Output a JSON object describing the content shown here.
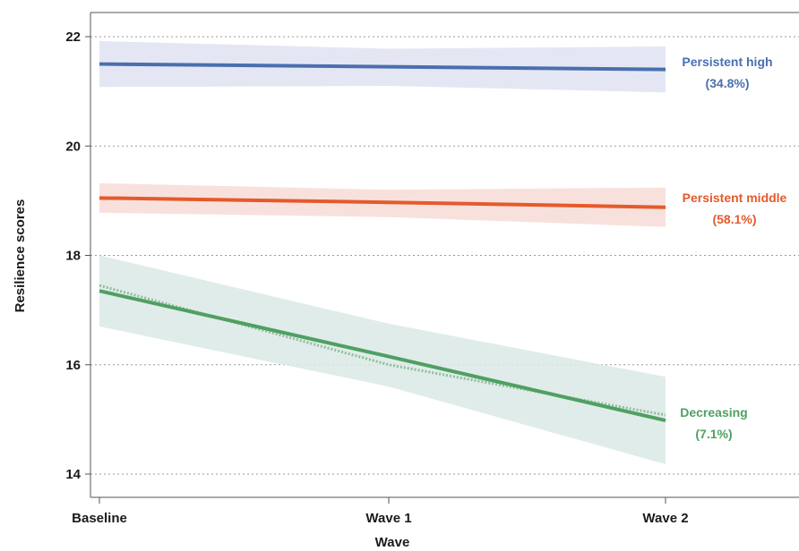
{
  "chart_data": {
    "type": "line",
    "categories": [
      "Baseline",
      "Wave 1",
      "Wave 2"
    ],
    "xlabel": "Wave",
    "ylabel": "Resilience scores",
    "ylim": [
      13.8,
      22.5
    ],
    "yticks": [
      14,
      16,
      18,
      20,
      22
    ],
    "grid": "horizontal dotted",
    "series": [
      {
        "name": "Persistent high",
        "percent": "(34.8%)",
        "color": "#4a6fb0",
        "band_color": "#dfe3f1",
        "values": [
          21.5,
          21.45,
          21.4
        ],
        "lower": [
          21.08,
          21.1,
          20.98
        ],
        "upper": [
          21.92,
          21.78,
          21.82
        ]
      },
      {
        "name": "Persistent middle",
        "percent": "(58.1%)",
        "color": "#e55a2b",
        "band_color": "#f7dcd7",
        "values": [
          19.05,
          18.97,
          18.88
        ],
        "lower": [
          18.78,
          18.7,
          18.52
        ],
        "upper": [
          19.32,
          19.2,
          19.24
        ]
      },
      {
        "name": "Decreasing",
        "percent": "(7.1%)",
        "color": "#4fa062",
        "band_color": "#dbe9e6",
        "values": [
          17.35,
          16.15,
          14.98
        ],
        "observed": [
          17.45,
          16.0,
          15.08
        ],
        "lower": [
          16.7,
          15.6,
          14.18
        ],
        "upper": [
          18.0,
          16.75,
          15.78
        ]
      }
    ]
  }
}
